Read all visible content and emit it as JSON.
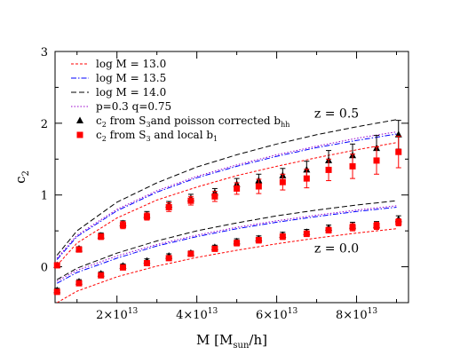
{
  "chart_data": {
    "type": "line",
    "xlabel": {
      "main": "M [M",
      "sub": "sun",
      "tail": "/h]"
    },
    "ylabel": {
      "main": "c",
      "sub": "2"
    },
    "xlim": [
      4500000000000.0,
      93000000000000.0
    ],
    "ylim": [
      -0.5,
      3.0
    ],
    "xticks": [
      {
        "value": 20000000000000.0,
        "base": "2×10",
        "exp": "13"
      },
      {
        "value": 40000000000000.0,
        "base": "4×10",
        "exp": "13"
      },
      {
        "value": 60000000000000.0,
        "base": "6×10",
        "exp": "13"
      },
      {
        "value": 80000000000000.0,
        "base": "8×10",
        "exp": "13"
      }
    ],
    "yticks": [
      {
        "value": 0,
        "label": "0"
      },
      {
        "value": 1,
        "label": "1"
      },
      {
        "value": 2,
        "label": "2"
      },
      {
        "value": 3,
        "label": "3"
      }
    ],
    "annotations": [
      {
        "text": "z = 0.5",
        "x": 75000000000000.0,
        "y": 2.08
      },
      {
        "text": "z = 0.0",
        "x": 75000000000000.0,
        "y": 0.2
      }
    ],
    "legend": [
      {
        "kind": "line",
        "label": "log M = 13.0",
        "color": "#ff0000",
        "dash": "3,2"
      },
      {
        "kind": "line",
        "label": "log M = 13.5",
        "color": "#0000ff",
        "dash": "6,2,1.5,2"
      },
      {
        "kind": "line",
        "label": "log M = 14.0",
        "color": "#000000",
        "dash": "6,3"
      },
      {
        "kind": "line",
        "label": "p=0.3 q=0.75",
        "color": "#9900cc",
        "dash": "1.5,2"
      },
      {
        "kind": "marker",
        "marker": "triangle",
        "color": "#000000",
        "label": "c",
        "sub": "2",
        "text": " from S",
        "sub2": "3",
        "text2": "and poisson corrected b",
        "sub3": "hh"
      },
      {
        "kind": "marker",
        "marker": "square",
        "color": "#ff0000",
        "label": "c",
        "sub": "2",
        "text": " from S",
        "sub2": "3",
        "text2": " and local b",
        "sub3": "1"
      }
    ],
    "series": [
      {
        "group": "z=0.5",
        "style": "log M = 13.0",
        "color": "#ff0000",
        "dash": "3,2",
        "x": [
          5000000000000.0,
          10000000000000.0,
          20000000000000.0,
          30000000000000.0,
          40000000000000.0,
          50000000000000.0,
          60000000000000.0,
          70000000000000.0,
          80000000000000.0,
          90000000000000.0
        ],
        "y": [
          0.02,
          0.33,
          0.68,
          0.93,
          1.11,
          1.27,
          1.4,
          1.52,
          1.63,
          1.73
        ]
      },
      {
        "group": "z=0.5",
        "style": "log M = 13.5",
        "color": "#0000ff",
        "dash": "6,2,1.5,2",
        "x": [
          5000000000000.0,
          10000000000000.0,
          20000000000000.0,
          30000000000000.0,
          40000000000000.0,
          50000000000000.0,
          60000000000000.0,
          70000000000000.0,
          80000000000000.0,
          90000000000000.0
        ],
        "y": [
          0.1,
          0.42,
          0.78,
          1.04,
          1.24,
          1.4,
          1.54,
          1.66,
          1.76,
          1.85
        ]
      },
      {
        "group": "z=0.5",
        "style": "p=0.3 q=0.75",
        "color": "#9900cc",
        "dash": "1.5,2",
        "x": [
          5000000000000.0,
          10000000000000.0,
          20000000000000.0,
          30000000000000.0,
          40000000000000.0,
          50000000000000.0,
          60000000000000.0,
          70000000000000.0,
          80000000000000.0,
          90000000000000.0
        ],
        "y": [
          0.12,
          0.44,
          0.8,
          1.06,
          1.26,
          1.42,
          1.56,
          1.68,
          1.79,
          1.88
        ]
      },
      {
        "group": "z=0.5",
        "style": "log M = 14.0",
        "color": "#000000",
        "dash": "6,3",
        "x": [
          5000000000000.0,
          10000000000000.0,
          20000000000000.0,
          30000000000000.0,
          40000000000000.0,
          50000000000000.0,
          60000000000000.0,
          70000000000000.0,
          80000000000000.0,
          90000000000000.0
        ],
        "y": [
          0.16,
          0.5,
          0.9,
          1.17,
          1.39,
          1.56,
          1.71,
          1.84,
          1.95,
          2.05
        ]
      },
      {
        "group": "z=0.0",
        "style": "log M = 13.0",
        "color": "#ff0000",
        "dash": "3,2",
        "x": [
          5000000000000.0,
          10000000000000.0,
          20000000000000.0,
          30000000000000.0,
          40000000000000.0,
          50000000000000.0,
          60000000000000.0,
          70000000000000.0,
          80000000000000.0,
          90000000000000.0
        ],
        "y": [
          -0.5,
          -0.34,
          -0.14,
          0.01,
          0.13,
          0.23,
          0.32,
          0.4,
          0.47,
          0.53
        ]
      },
      {
        "group": "z=0.0",
        "style": "log M = 13.5",
        "color": "#0000ff",
        "dash": "6,2,1.5,2",
        "x": [
          5000000000000.0,
          10000000000000.0,
          20000000000000.0,
          30000000000000.0,
          40000000000000.0,
          50000000000000.0,
          60000000000000.0,
          70000000000000.0,
          80000000000000.0,
          90000000000000.0
        ],
        "y": [
          -0.23,
          -0.08,
          0.12,
          0.29,
          0.42,
          0.53,
          0.62,
          0.7,
          0.77,
          0.83
        ]
      },
      {
        "group": "z=0.0",
        "style": "p=0.3 q=0.75",
        "color": "#9900cc",
        "dash": "1.5,2",
        "x": [
          5000000000000.0,
          10000000000000.0,
          20000000000000.0,
          30000000000000.0,
          40000000000000.0,
          50000000000000.0,
          60000000000000.0,
          70000000000000.0,
          80000000000000.0,
          90000000000000.0
        ],
        "y": [
          -0.2,
          -0.05,
          0.15,
          0.31,
          0.44,
          0.55,
          0.64,
          0.72,
          0.79,
          0.85
        ]
      },
      {
        "group": "z=0.0",
        "style": "log M = 14.0",
        "color": "#000000",
        "dash": "6,3",
        "x": [
          5000000000000.0,
          10000000000000.0,
          20000000000000.0,
          30000000000000.0,
          40000000000000.0,
          50000000000000.0,
          60000000000000.0,
          70000000000000.0,
          80000000000000.0,
          90000000000000.0
        ],
        "y": [
          -0.18,
          -0.02,
          0.19,
          0.36,
          0.5,
          0.61,
          0.71,
          0.79,
          0.86,
          0.92
        ]
      }
    ],
    "points": [
      {
        "group": "z=0.5",
        "marker": "triangle",
        "color": "#000000",
        "x": [
          5000000000000.0,
          10500000000000.0,
          16000000000000.0,
          21500000000000.0,
          27500000000000.0,
          33000000000000.0,
          38500000000000.0,
          44500000000000.0,
          50000000000000.0,
          55500000000000.0,
          61500000000000.0,
          67500000000000.0,
          73000000000000.0,
          79000000000000.0,
          85000000000000.0,
          90500000000000.0
        ],
        "y": [
          0.02,
          0.25,
          0.43,
          0.6,
          0.72,
          0.86,
          0.95,
          1.03,
          1.15,
          1.2,
          1.27,
          1.35,
          1.48,
          1.55,
          1.65,
          1.84
        ],
        "err": [
          0.03,
          0.03,
          0.04,
          0.04,
          0.05,
          0.05,
          0.06,
          0.06,
          0.08,
          0.09,
          0.1,
          0.12,
          0.14,
          0.16,
          0.18,
          0.2
        ]
      },
      {
        "group": "z=0.5",
        "marker": "square",
        "color": "#ff0000",
        "x": [
          5000000000000.0,
          10500000000000.0,
          16000000000000.0,
          21500000000000.0,
          27500000000000.0,
          33000000000000.0,
          38500000000000.0,
          44500000000000.0,
          50000000000000.0,
          55500000000000.0,
          61500000000000.0,
          67500000000000.0,
          73000000000000.0,
          79000000000000.0,
          85000000000000.0,
          90500000000000.0
        ],
        "y": [
          0.02,
          0.24,
          0.42,
          0.58,
          0.7,
          0.83,
          0.92,
          0.98,
          1.09,
          1.12,
          1.18,
          1.23,
          1.35,
          1.4,
          1.48,
          1.6
        ],
        "err": [
          0.03,
          0.03,
          0.04,
          0.05,
          0.05,
          0.06,
          0.06,
          0.07,
          0.08,
          0.1,
          0.11,
          0.13,
          0.15,
          0.17,
          0.19,
          0.22
        ]
      },
      {
        "group": "z=0.0",
        "marker": "triangle",
        "color": "#000000",
        "x": [
          5000000000000.0,
          10500000000000.0,
          16000000000000.0,
          21500000000000.0,
          27500000000000.0,
          33000000000000.0,
          38500000000000.0,
          44500000000000.0,
          50000000000000.0,
          55500000000000.0,
          61500000000000.0,
          67500000000000.0,
          73000000000000.0,
          79000000000000.0,
          85000000000000.0,
          90500000000000.0
        ],
        "y": [
          -0.33,
          -0.21,
          -0.1,
          0.01,
          0.08,
          0.15,
          0.19,
          0.27,
          0.35,
          0.39,
          0.44,
          0.48,
          0.54,
          0.57,
          0.58,
          0.66
        ],
        "err": [
          0.03,
          0.03,
          0.03,
          0.03,
          0.03,
          0.03,
          0.03,
          0.03,
          0.04,
          0.04,
          0.04,
          0.04,
          0.04,
          0.05,
          0.05,
          0.05
        ]
      },
      {
        "group": "z=0.0",
        "marker": "square",
        "color": "#ff0000",
        "x": [
          5000000000000.0,
          10500000000000.0,
          16000000000000.0,
          21500000000000.0,
          27500000000000.0,
          33000000000000.0,
          38500000000000.0,
          44500000000000.0,
          50000000000000.0,
          55500000000000.0,
          61500000000000.0,
          67500000000000.0,
          73000000000000.0,
          79000000000000.0,
          85000000000000.0,
          90500000000000.0
        ],
        "y": [
          -0.35,
          -0.23,
          -0.12,
          -0.01,
          0.05,
          0.12,
          0.18,
          0.25,
          0.33,
          0.37,
          0.42,
          0.46,
          0.51,
          0.55,
          0.57,
          0.62
        ],
        "err": [
          0.03,
          0.03,
          0.03,
          0.03,
          0.03,
          0.03,
          0.03,
          0.03,
          0.04,
          0.04,
          0.04,
          0.04,
          0.04,
          0.05,
          0.05,
          0.05
        ]
      }
    ]
  }
}
